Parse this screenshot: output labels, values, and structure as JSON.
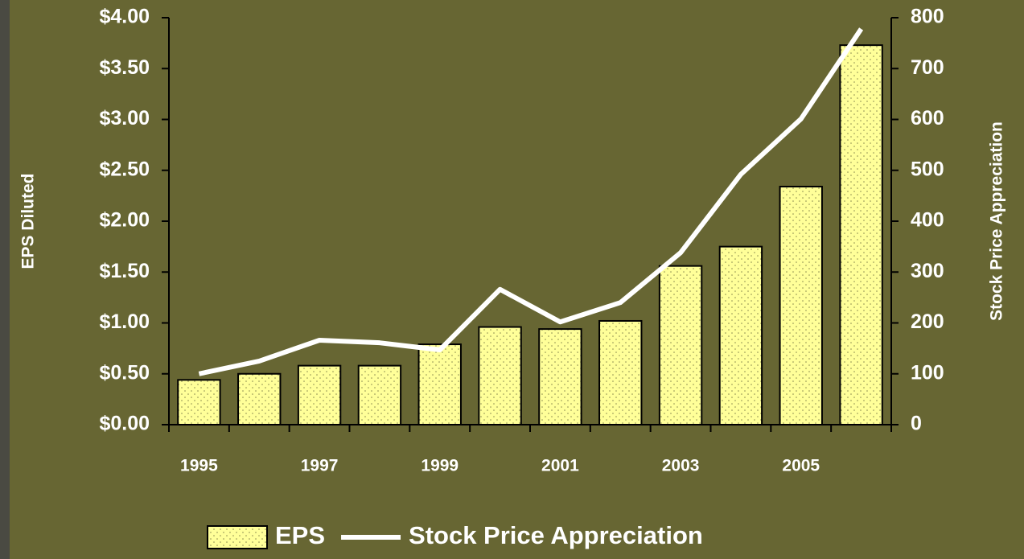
{
  "chart_data": {
    "type": "bar",
    "categories": [
      "1995",
      null,
      "1997",
      null,
      "1999",
      null,
      "2001",
      null,
      "2003",
      null,
      "2005",
      null
    ],
    "series": [
      {
        "name": "EPS",
        "type": "bar",
        "color": "#ffff99",
        "values": [
          0.44,
          0.5,
          0.58,
          0.58,
          0.79,
          0.96,
          0.94,
          1.02,
          1.56,
          1.75,
          2.34,
          3.73
        ]
      },
      {
        "name": "Stock Price Appreciation",
        "type": "line",
        "color": "#ffffff",
        "axis": "y2",
        "values": [
          100,
          125,
          166,
          161,
          147,
          266,
          202,
          240,
          338,
          492,
          601,
          778
        ]
      }
    ],
    "ylabel": "EPS Diluted",
    "y2label": "Stock Price Appreciation",
    "ylim": [
      0,
      4
    ],
    "yticks": [
      {
        "value": 0,
        "label": "$0.00"
      },
      {
        "value": 0.5,
        "label": "$0.50"
      },
      {
        "value": 1,
        "label": "$1.00"
      },
      {
        "value": 1.5,
        "label": "$1.50"
      },
      {
        "value": 2,
        "label": "$2.00"
      },
      {
        "value": 2.5,
        "label": "$2.50"
      },
      {
        "value": 3,
        "label": "$3.00"
      },
      {
        "value": 3.5,
        "label": "$3.50"
      },
      {
        "value": 4,
        "label": "$4.00"
      }
    ],
    "y2lim": [
      0,
      800
    ],
    "y2ticks": [
      0,
      100,
      200,
      300,
      400,
      500,
      600,
      700,
      800
    ],
    "grid": false,
    "legend": "bottom"
  }
}
